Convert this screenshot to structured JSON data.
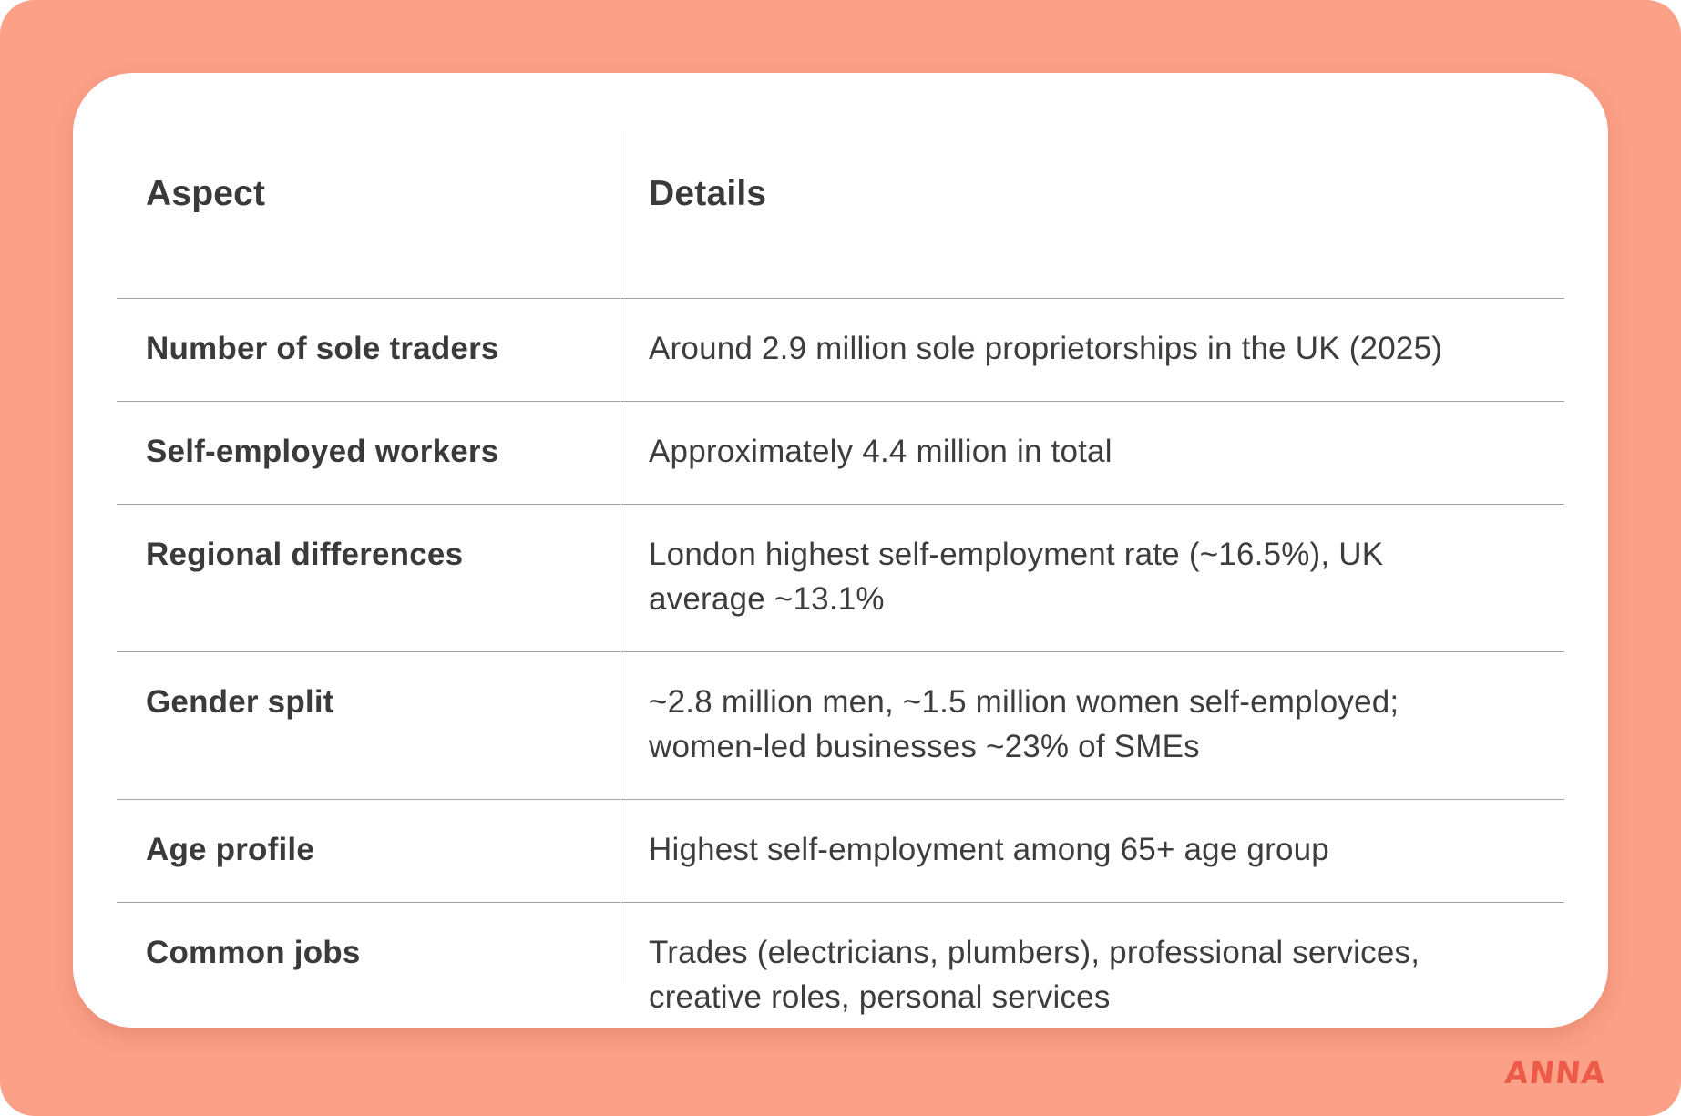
{
  "table": {
    "header": {
      "aspect": "Aspect",
      "details": "Details"
    },
    "rows": [
      {
        "aspect": "Number of sole traders",
        "details": "Around 2.9 million sole proprietorships in the UK (2025)"
      },
      {
        "aspect": "Self-employed workers",
        "details": "Approximately 4.4 million in total"
      },
      {
        "aspect": "Regional differences",
        "details": "London highest self-employment rate (~16.5%), UK average ~13.1%"
      },
      {
        "aspect": "Gender split",
        "details": "~2.8 million men, ~1.5 million women self-employed; women-led businesses ~23% of SMEs"
      },
      {
        "aspect": "Age profile",
        "details": "Highest self-employment among 65+ age group"
      },
      {
        "aspect": "Common jobs",
        "details": "Trades (electricians, plumbers), professional services, creative roles, personal services"
      }
    ]
  },
  "logo": {
    "text": "ANNA"
  },
  "colors": {
    "background": "#fca088",
    "card": "#ffffff",
    "text": "#3a3a3a",
    "divider": "#a3a3a3",
    "logo": "#ee5a48"
  }
}
